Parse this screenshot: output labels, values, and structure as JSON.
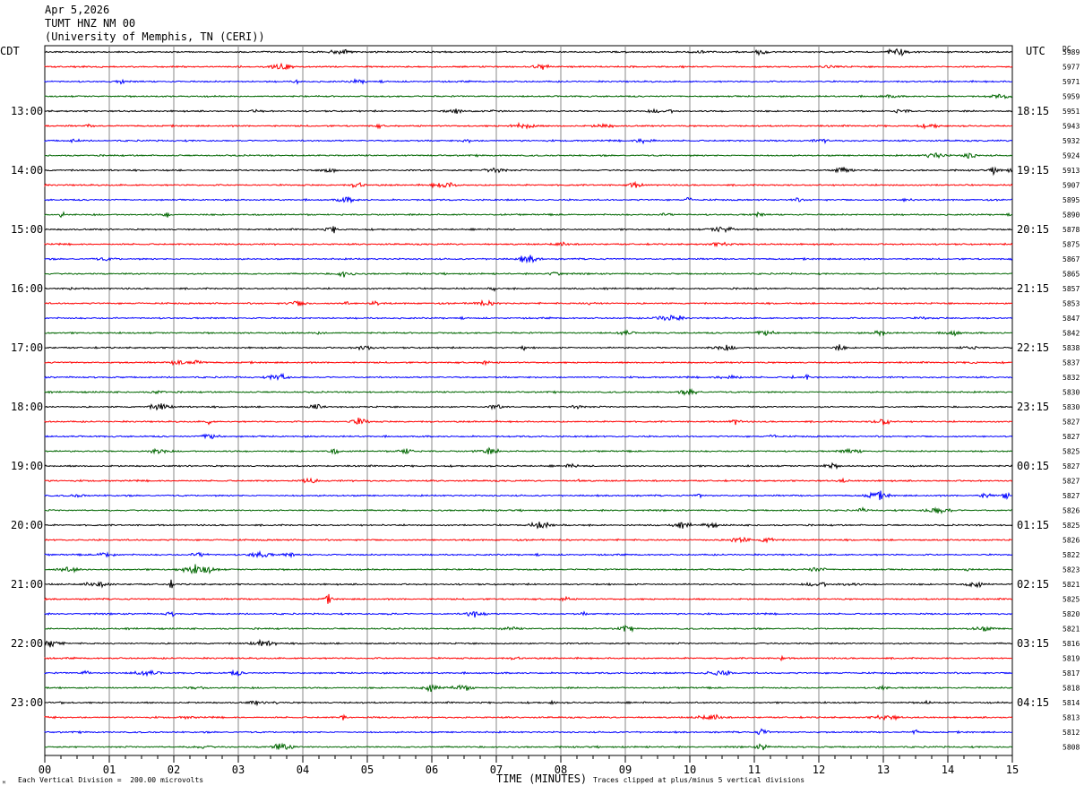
{
  "header": {
    "date": "Apr 5,2026",
    "station": "TUMT HNZ NM 00",
    "institution": "(University of Memphis, TN (CERI))"
  },
  "left_timezone": "CDT",
  "right_timezone": "UTC",
  "dc_label": "DC",
  "footer": {
    "scale_note": "Each Vertical Division =  200.00 microvolts",
    "clip_note": "Traces clipped at plus/minus 5 vertical divisions",
    "logo_mark": "ᴹ"
  },
  "chart_data": {
    "type": "line",
    "xlabel": "TIME (MINUTES)",
    "x_ticks": [
      "00",
      "01",
      "02",
      "03",
      "04",
      "05",
      "06",
      "07",
      "08",
      "09",
      "10",
      "11",
      "12",
      "13",
      "14",
      "15"
    ],
    "xlim": [
      0,
      15
    ],
    "trace_colors": [
      "#000000",
      "#ff0000",
      "#0000ff",
      "#006600"
    ],
    "left_hour_labels": [
      "13:00",
      "14:00",
      "15:00",
      "16:00",
      "17:00",
      "18:00",
      "19:00",
      "20:00",
      "21:00",
      "22:00",
      "23:00"
    ],
    "right_hour_labels": [
      "18:15",
      "19:15",
      "20:15",
      "21:15",
      "22:15",
      "23:15",
      "00:15",
      "01:15",
      "02:15",
      "03:15",
      "04:15"
    ],
    "dc_offsets": [
      "5989",
      "5977",
      "5971",
      "5959",
      "5951",
      "5943",
      "5932",
      "5924",
      "5913",
      "5907",
      "5895",
      "5890",
      "5878",
      "5875",
      "5867",
      "5865",
      "5857",
      "5853",
      "5847",
      "5842",
      "5838",
      "5837",
      "5832",
      "5830",
      "5830",
      "5827",
      "5827",
      "5825",
      "5827",
      "5827",
      "5827",
      "5826",
      "5825",
      "5826",
      "5822",
      "5823",
      "5821",
      "5825",
      "5820",
      "5821",
      "5816",
      "5819",
      "5817",
      "5818",
      "5814",
      "5813",
      "5812",
      "5808"
    ]
  }
}
